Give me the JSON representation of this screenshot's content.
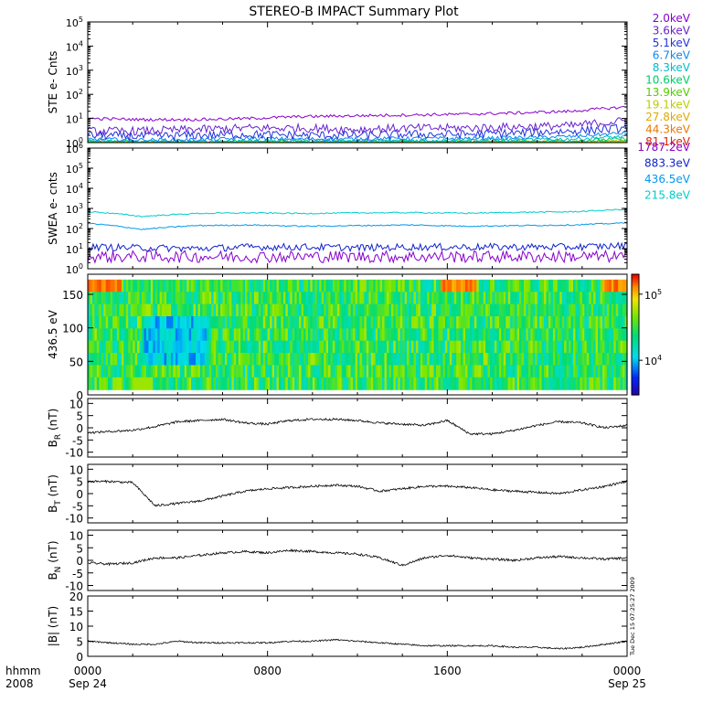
{
  "title": "STEREO-B IMPACT Summary Plot",
  "time_axis": {
    "label_top": "hhmm",
    "label_bottom": "2008",
    "ticks": [
      {
        "t": 0,
        "top": "0000",
        "bottom": "Sep 24"
      },
      {
        "t": 8,
        "top": "0800",
        "bottom": ""
      },
      {
        "t": 16,
        "top": "1600",
        "bottom": ""
      },
      {
        "t": 24,
        "top": "0000",
        "bottom": "Sep 25"
      }
    ],
    "range_hours": [
      0,
      24
    ]
  },
  "timestamp": "Tue Dec 15 07:25:27 2009",
  "colors": {
    "ste": [
      "#8800cc",
      "#6622cc",
      "#2233dd",
      "#1188ee",
      "#00bbcc",
      "#00cc66",
      "#55cc00",
      "#bbcc00",
      "#ddaa00",
      "#ee7700",
      "#dd2200"
    ],
    "swea": [
      "#8800cc",
      "#1122cc",
      "#0099ee",
      "#00cccc"
    ]
  },
  "chart_data": [
    {
      "id": "ste",
      "type": "line",
      "ylabel": "STE e- Cnts",
      "yscale": "log",
      "ylim": [
        1,
        100000
      ],
      "yticks": [
        {
          "v": 1,
          "m": "0"
        },
        {
          "v": 10,
          "m": "1"
        },
        {
          "v": 100,
          "m": "2"
        },
        {
          "v": 1000,
          "m": "3"
        },
        {
          "v": 10000,
          "m": "4"
        },
        {
          "v": 100000,
          "m": "5"
        }
      ],
      "series": [
        {
          "name": "2.0keV",
          "values": [
            10,
            9,
            9,
            10,
            12,
            13,
            14,
            15,
            17,
            20,
            30
          ]
        },
        {
          "name": "3.6keV",
          "values": [
            3,
            3,
            3.5,
            4,
            4,
            3.5,
            4,
            4,
            4.5,
            5,
            8
          ]
        },
        {
          "name": "5.1keV",
          "values": [
            2,
            1.8,
            2,
            2.2,
            2,
            2,
            2.2,
            2.2,
            2.5,
            3,
            4
          ]
        },
        {
          "name": "6.7keV",
          "values": [
            1.4,
            1.3,
            1.3,
            1.5,
            1.4,
            1.4,
            1.5,
            1.5,
            1.6,
            1.8,
            2.5
          ]
        },
        {
          "name": "8.3keV",
          "values": [
            1.2,
            1.1,
            1.1,
            1.2,
            1.2,
            1.2,
            1.2,
            1.3,
            1.3,
            1.4,
            1.8
          ]
        },
        {
          "name": "10.6keV",
          "values": [
            1.1,
            1.05,
            1.05,
            1.1,
            1.1,
            1.1,
            1.1,
            1.1,
            1.15,
            1.2,
            1.4
          ]
        },
        {
          "name": "13.9keV",
          "values": [
            1,
            1,
            1,
            1,
            1,
            1,
            1,
            1,
            1,
            1.1,
            1.2
          ]
        },
        {
          "name": "19.1keV",
          "values": [
            1,
            1,
            1,
            1,
            1,
            1,
            1,
            1,
            1,
            1,
            1.1
          ]
        },
        {
          "name": "27.8keV",
          "values": [
            1,
            1,
            1,
            1,
            1,
            1,
            1,
            1,
            1,
            1,
            1
          ]
        },
        {
          "name": "44.3keV",
          "values": [
            1,
            1,
            1,
            1,
            1,
            1,
            1,
            1,
            1,
            1,
            1
          ]
        },
        {
          "name": "81.1keV",
          "values": [
            1,
            1,
            1,
            1,
            1,
            1,
            1,
            1,
            1,
            1,
            1
          ]
        }
      ]
    },
    {
      "id": "swea",
      "type": "line",
      "ylabel": "SWEA e- cnts",
      "yscale": "log",
      "ylim": [
        1,
        1000000
      ],
      "yticks": [
        {
          "v": 1,
          "m": "0"
        },
        {
          "v": 10,
          "m": "1"
        },
        {
          "v": 100,
          "m": "2"
        },
        {
          "v": 1000,
          "m": "3"
        },
        {
          "v": 10000,
          "m": "4"
        },
        {
          "v": 100000,
          "m": "5"
        },
        {
          "v": 1000000,
          "m": "6"
        }
      ],
      "series": [
        {
          "name": "1787.2eV",
          "values": [
            4,
            4,
            4,
            4,
            4,
            4,
            4,
            4,
            4,
            4,
            4
          ]
        },
        {
          "name": "883.3eV",
          "values": [
            12,
            11,
            10,
            12,
            12,
            11,
            12,
            12,
            12,
            12,
            14
          ]
        },
        {
          "name": "436.5eV",
          "values": [
            180,
            90,
            140,
            150,
            130,
            140,
            150,
            130,
            140,
            150,
            190
          ]
        },
        {
          "name": "215.8eV",
          "values": [
            700,
            400,
            560,
            600,
            560,
            600,
            620,
            580,
            640,
            680,
            900
          ]
        }
      ]
    },
    {
      "id": "pad",
      "type": "heatmap",
      "ylabel": "436.5 eV",
      "ylim": [
        0,
        180
      ],
      "yticks": [
        0,
        50,
        100,
        150
      ],
      "colorbar": {
        "scale": "log",
        "range": [
          3000,
          200000
        ],
        "ticks": [
          {
            "v": 10000,
            "m": "4"
          },
          {
            "v": 100000,
            "m": "5"
          }
        ]
      }
    },
    {
      "id": "br",
      "type": "line",
      "ylabel": "B",
      "sub": "R",
      "unit": "(nT)",
      "ylim": [
        -12,
        12
      ],
      "yticks": [
        -10,
        -5,
        0,
        5,
        10
      ],
      "x": [
        0,
        1,
        2,
        3,
        4,
        5,
        6,
        7,
        8,
        9,
        10,
        11,
        12,
        13,
        14,
        15,
        16,
        17,
        18,
        19,
        20,
        21,
        22,
        23,
        24
      ],
      "values": [
        -2,
        -1.5,
        -1,
        0.5,
        2.5,
        3,
        3.5,
        2,
        1.5,
        3,
        3.5,
        3.5,
        3,
        2,
        1.5,
        1,
        3,
        -2.5,
        -2.5,
        -1,
        1,
        2.5,
        2,
        0,
        1
      ]
    },
    {
      "id": "bt",
      "type": "line",
      "ylabel": "B",
      "sub": "T",
      "unit": "(nT)",
      "ylim": [
        -12,
        12
      ],
      "yticks": [
        -10,
        -5,
        0,
        5,
        10
      ],
      "x": [
        0,
        1,
        2,
        3,
        4,
        5,
        6,
        7,
        8,
        9,
        10,
        11,
        12,
        13,
        14,
        15,
        16,
        17,
        18,
        19,
        20,
        21,
        22,
        23,
        24
      ],
      "values": [
        5,
        5,
        4.5,
        -5,
        -4,
        -3,
        -1,
        1,
        2,
        2.5,
        3,
        3.5,
        3,
        1,
        2,
        3,
        3,
        2.5,
        1.5,
        1,
        0.5,
        0,
        1.5,
        3,
        5
      ]
    },
    {
      "id": "bn",
      "type": "line",
      "ylabel": "B",
      "sub": "N",
      "unit": "(nT)",
      "ylim": [
        -12,
        12
      ],
      "yticks": [
        -10,
        -5,
        0,
        5,
        10
      ],
      "x": [
        0,
        1,
        2,
        3,
        4,
        5,
        6,
        7,
        8,
        9,
        10,
        11,
        12,
        13,
        14,
        15,
        16,
        17,
        18,
        19,
        20,
        21,
        22,
        23,
        24
      ],
      "values": [
        -1,
        -1.5,
        -1,
        1,
        1,
        2,
        3,
        3.5,
        3,
        4,
        3.5,
        3,
        2.5,
        1,
        -2,
        1,
        2,
        1,
        0.5,
        0,
        1,
        1.5,
        1,
        0.5,
        1
      ]
    },
    {
      "id": "btot",
      "type": "line",
      "ylabel": "|B|",
      "sub": "",
      "unit": "(nT)",
      "ylim": [
        0,
        20
      ],
      "yticks": [
        0,
        5,
        10,
        15,
        20
      ],
      "x": [
        0,
        1,
        2,
        3,
        4,
        5,
        6,
        7,
        8,
        9,
        10,
        11,
        12,
        13,
        14,
        15,
        16,
        17,
        18,
        19,
        20,
        21,
        22,
        23,
        24
      ],
      "values": [
        5,
        4.5,
        4,
        4,
        5,
        4.5,
        4.5,
        4.5,
        4.5,
        5,
        5,
        5.5,
        5,
        4.5,
        4,
        3.5,
        3.5,
        3.5,
        3.5,
        3,
        3,
        2.5,
        3,
        4,
        5
      ]
    }
  ]
}
